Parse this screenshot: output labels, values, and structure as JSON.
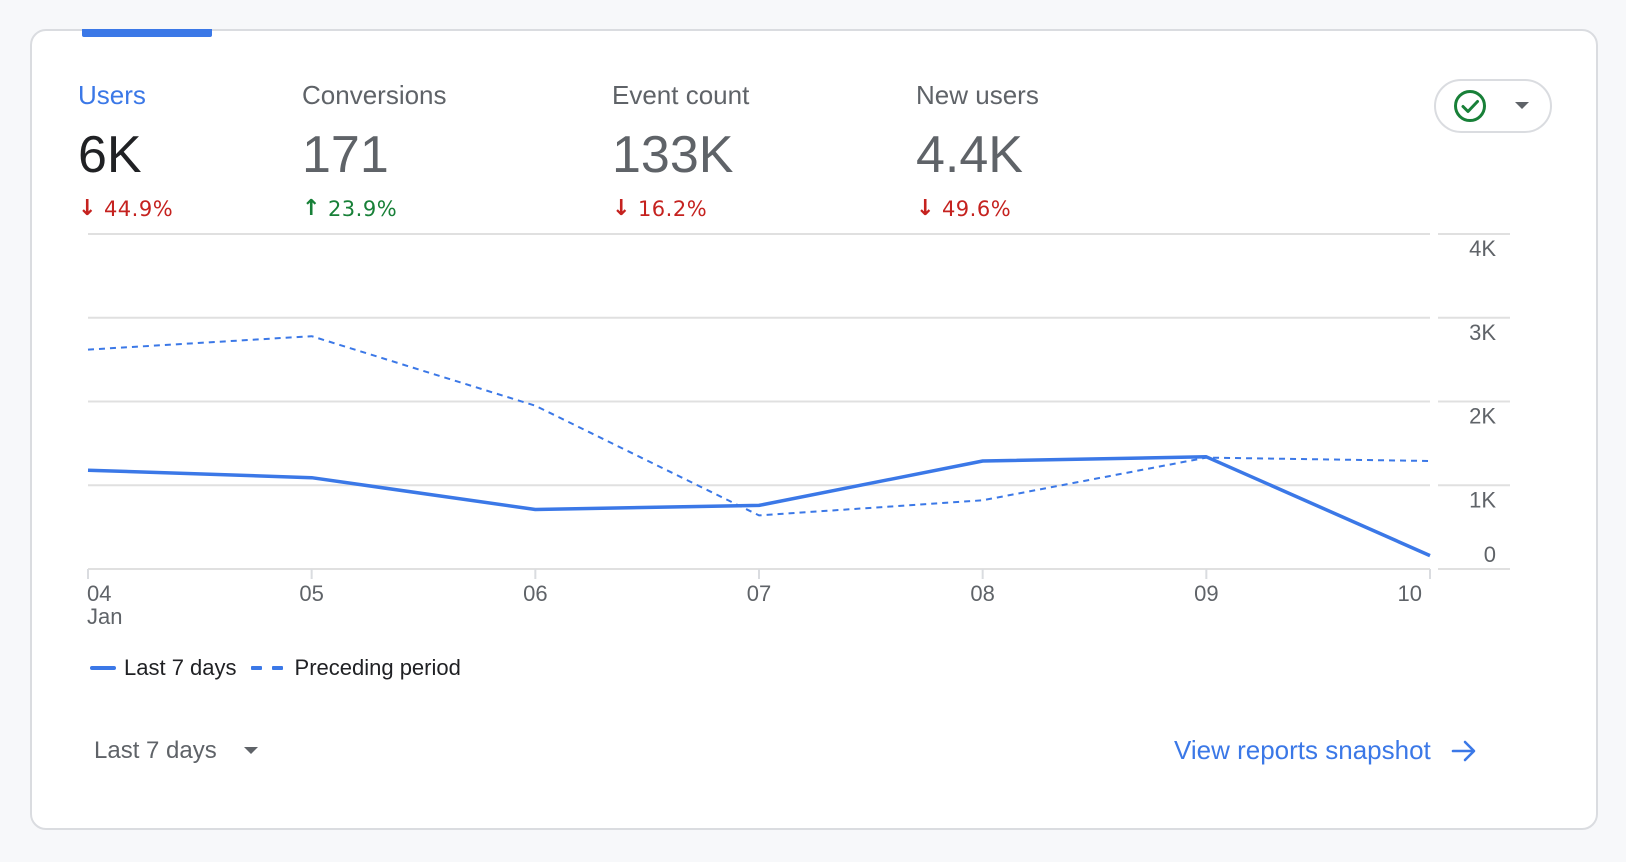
{
  "metrics": [
    {
      "label": "Users",
      "value": "6K",
      "change": "44.9%",
      "direction": "down"
    },
    {
      "label": "Conversions",
      "value": "171",
      "change": "23.9%",
      "direction": "up"
    },
    {
      "label": "Event count",
      "value": "133K",
      "change": "16.2%",
      "direction": "down"
    },
    {
      "label": "New users",
      "value": "4.4K",
      "change": "49.6%",
      "direction": "down"
    }
  ],
  "compare_button": {
    "icon": "check-circle-icon",
    "caret": "caret-down-icon"
  },
  "chart_data": {
    "type": "line",
    "categories": [
      "04",
      "05",
      "06",
      "07",
      "08",
      "09",
      "10"
    ],
    "x_sublabel": "Jan",
    "y_ticks": [
      "4K",
      "3K",
      "2K",
      "1K",
      "0"
    ],
    "y_tick_values": [
      4000,
      3000,
      2000,
      1000,
      0
    ],
    "ylim": [
      0,
      4000
    ],
    "y_axis_position": "right",
    "grid": true,
    "legend_position": "bottom-left",
    "series": [
      {
        "name": "Last 7 days",
        "style": "solid",
        "color": "#3b78e7",
        "values": [
          1180,
          1090,
          710,
          760,
          1290,
          1340,
          160
        ]
      },
      {
        "name": "Preceding period",
        "style": "dashed",
        "color": "#3b78e7",
        "values": [
          2620,
          2780,
          1950,
          640,
          820,
          1330,
          1290
        ]
      }
    ]
  },
  "date_range": {
    "label": "Last 7 days"
  },
  "view_link": {
    "label": "View reports snapshot"
  },
  "colors": {
    "accent": "#3b78e7",
    "down": "#c5221f",
    "up": "#188038",
    "check": "#188038"
  }
}
